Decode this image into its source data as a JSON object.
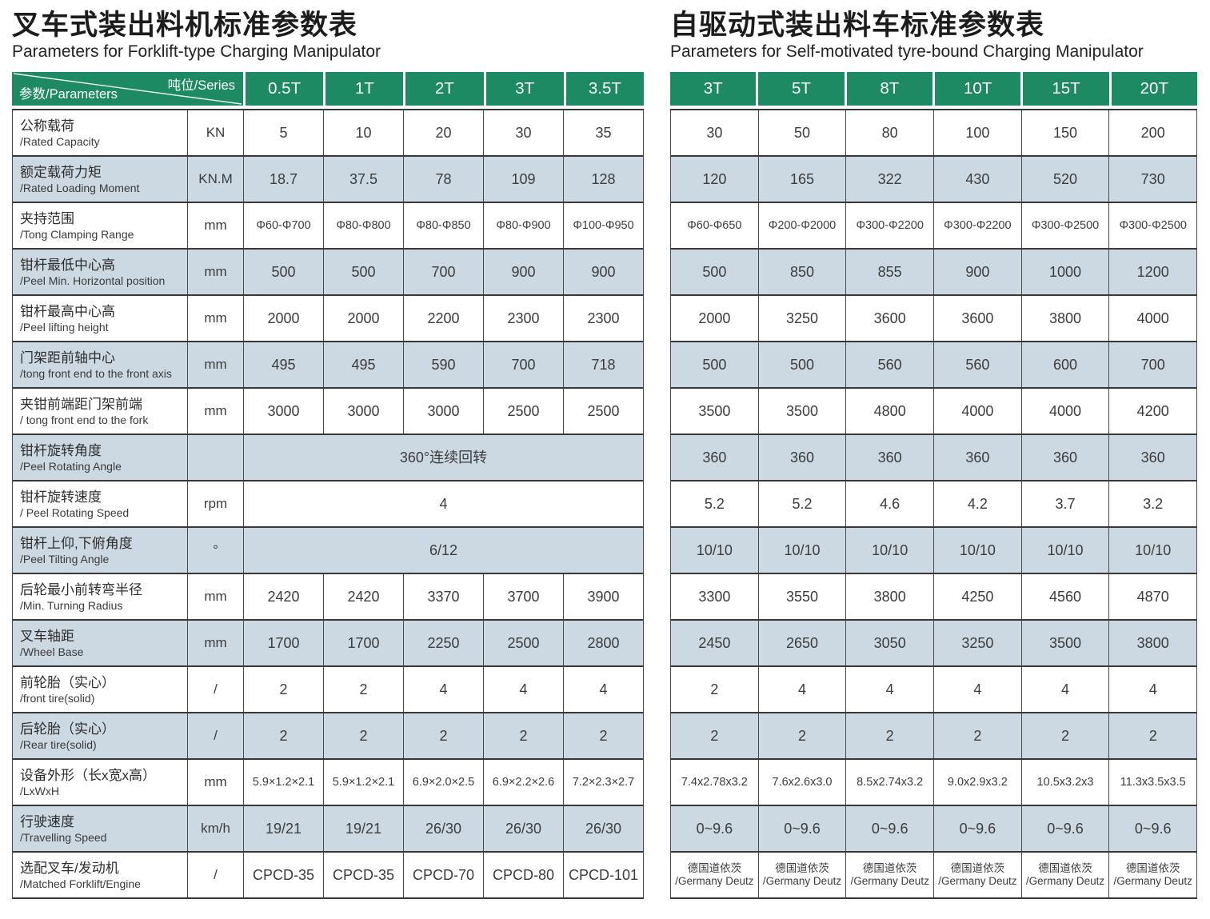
{
  "colors": {
    "header_green": "#1e8a63",
    "row_alt_blue": "#cdd9e2",
    "row_white": "#ffffff",
    "border_dark": "#383838",
    "header_text": "#ffffff",
    "body_text": "#3c3c3c"
  },
  "left_table": {
    "title_zh": "叉车式装出料机标准参数表",
    "title_en": "Parameters for Forklift-type Charging Manipulator",
    "corner_top": "吨位/Series",
    "corner_bottom": "参数/Parameters",
    "columns": [
      "0.5T",
      "1T",
      "2T",
      "3T",
      "3.5T"
    ],
    "rows": [
      {
        "label_zh": "公称载荷",
        "label_en": "/Rated Capacity",
        "unit": "KN",
        "values": [
          "5",
          "10",
          "20",
          "30",
          "35"
        ]
      },
      {
        "label_zh": "额定载荷力矩",
        "label_en": "/Rated Loading Moment",
        "unit": "KN.M",
        "values": [
          "18.7",
          "37.5",
          "78",
          "109",
          "128"
        ]
      },
      {
        "label_zh": "夹持范围",
        "label_en": "/Tong Clamping Range",
        "unit": "mm",
        "size": "sm",
        "values": [
          "Φ60-Φ700",
          "Φ80-Φ800",
          "Φ80-Φ850",
          "Φ80-Φ900",
          "Φ100-Φ950"
        ]
      },
      {
        "label_zh": "钳杆最低中心高",
        "label_en": "/Peel Min. Horizontal position",
        "unit": "mm",
        "values": [
          "500",
          "500",
          "700",
          "900",
          "900"
        ]
      },
      {
        "label_zh": "钳杆最高中心高",
        "label_en": "/Peel lifting height",
        "unit": "mm",
        "values": [
          "2000",
          "2000",
          "2200",
          "2300",
          "2300"
        ]
      },
      {
        "label_zh": "门架距前轴中心",
        "label_en": "/tong front end to the front axis",
        "unit": "mm",
        "values": [
          "495",
          "495",
          "590",
          "700",
          "718"
        ]
      },
      {
        "label_zh": "夹钳前端距门架前端",
        "label_en": "/ tong front end to the fork",
        "unit": "mm",
        "values": [
          "3000",
          "3000",
          "3000",
          "2500",
          "2500"
        ]
      },
      {
        "label_zh": "钳杆旋转角度",
        "label_en": "/Peel Rotating Angle",
        "unit": "",
        "span": "360°连续回转"
      },
      {
        "label_zh": "钳杆旋转速度",
        "label_en": "/ Peel Rotating Speed",
        "unit": "rpm",
        "span": "4"
      },
      {
        "label_zh": "钳杆上仰,下俯角度",
        "label_en": "/Peel Tilting Angle",
        "unit": "°",
        "span": "6/12"
      },
      {
        "label_zh": "后轮最小前转弯半径",
        "label_en": "/Min. Turning Radius",
        "unit": "mm",
        "values": [
          "2420",
          "2420",
          "3370",
          "3700",
          "3900"
        ]
      },
      {
        "label_zh": "叉车轴距",
        "label_en": "/Wheel Base",
        "unit": "mm",
        "values": [
          "1700",
          "1700",
          "2250",
          "2500",
          "2800"
        ]
      },
      {
        "label_zh": "前轮胎（实心）",
        "label_en": "/front tire(solid)",
        "unit": "/",
        "values": [
          "2",
          "2",
          "4",
          "4",
          "4"
        ]
      },
      {
        "label_zh": "后轮胎（实心）",
        "label_en": "/Rear tire(solid)",
        "unit": "/",
        "values": [
          "2",
          "2",
          "2",
          "2",
          "2"
        ]
      },
      {
        "label_zh": "设备外形（长x宽x高）",
        "label_en": "/LxWxH",
        "unit": "mm",
        "size": "sm",
        "values": [
          "5.9×1.2×2.1",
          "5.9×1.2×2.1",
          "6.9×2.0×2.5",
          "6.9×2.2×2.6",
          "7.2×2.3×2.7"
        ]
      },
      {
        "label_zh": "行驶速度",
        "label_en": "/Travelling Speed",
        "unit": "km/h",
        "values": [
          "19/21",
          "19/21",
          "26/30",
          "26/30",
          "26/30"
        ]
      },
      {
        "label_zh": "选配叉车/发动机",
        "label_en": "/Matched Forklift/Engine",
        "unit": "/",
        "values": [
          "CPCD-35",
          "CPCD-35",
          "CPCD-70",
          "CPCD-80",
          "CPCD-101"
        ]
      }
    ]
  },
  "right_table": {
    "title_zh": "自驱动式装出料车标准参数表",
    "title_en": "Parameters for Self-motivated tyre-bound Charging Manipulator",
    "columns": [
      "3T",
      "5T",
      "8T",
      "10T",
      "15T",
      "20T"
    ],
    "rows": [
      {
        "values": [
          "30",
          "50",
          "80",
          "100",
          "150",
          "200"
        ]
      },
      {
        "values": [
          "120",
          "165",
          "322",
          "430",
          "520",
          "730"
        ]
      },
      {
        "size": "sm",
        "values": [
          "Φ60-Φ650",
          "Φ200-Φ2000",
          "Φ300-Φ2200",
          "Φ300-Φ2200",
          "Φ300-Φ2500",
          "Φ300-Φ2500"
        ]
      },
      {
        "values": [
          "500",
          "850",
          "855",
          "900",
          "1000",
          "1200"
        ]
      },
      {
        "values": [
          "2000",
          "3250",
          "3600",
          "3600",
          "3800",
          "4000"
        ]
      },
      {
        "values": [
          "500",
          "500",
          "560",
          "560",
          "600",
          "700"
        ]
      },
      {
        "values": [
          "3500",
          "3500",
          "4800",
          "4000",
          "4000",
          "4200"
        ]
      },
      {
        "values": [
          "360",
          "360",
          "360",
          "360",
          "360",
          "360"
        ]
      },
      {
        "values": [
          "5.2",
          "5.2",
          "4.6",
          "4.2",
          "3.7",
          "3.2"
        ]
      },
      {
        "values": [
          "10/10",
          "10/10",
          "10/10",
          "10/10",
          "10/10",
          "10/10"
        ]
      },
      {
        "values": [
          "3300",
          "3550",
          "3800",
          "4250",
          "4560",
          "4870"
        ]
      },
      {
        "values": [
          "2450",
          "2650",
          "3050",
          "3250",
          "3500",
          "3800"
        ]
      },
      {
        "values": [
          "2",
          "4",
          "4",
          "4",
          "4",
          "4"
        ]
      },
      {
        "values": [
          "2",
          "2",
          "2",
          "2",
          "2",
          "2"
        ]
      },
      {
        "size": "sm",
        "values": [
          "7.4x2.78x3.2",
          "7.6x2.6x3.0",
          "8.5x2.74x3.2",
          "9.0x2.9x3.2",
          "10.5x3.2x3",
          "11.3x3.5x3.5"
        ]
      },
      {
        "values": [
          "0~9.6",
          "0~9.6",
          "0~9.6",
          "0~9.6",
          "0~9.6",
          "0~9.6"
        ]
      },
      {
        "size": "xs",
        "values": [
          "德国道依茨\n/Germany Deutz",
          "德国道依茨\n/Germany Deutz",
          "德国道依茨\n/Germany Deutz",
          "德国道依茨\n/Germany Deutz",
          "德国道依茨\n/Germany Deutz",
          "德国道依茨\n/Germany Deutz"
        ]
      }
    ]
  }
}
